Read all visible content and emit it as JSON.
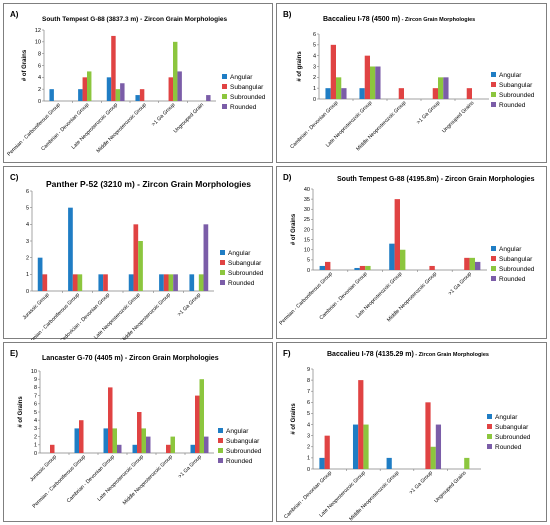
{
  "colors": {
    "Angular": "#1f7dc4",
    "Subangular": "#e04343",
    "Subrounded": "#8cc63e",
    "Rounded": "#7b5da8"
  },
  "chart_data": [
    {
      "panel": "A)",
      "title": "South Tempest G-88 (3837.3 m) - Zircon Grain Morphologies",
      "type": "bar",
      "ylabel": "# of Grains",
      "ylim": [
        0,
        12
      ],
      "yticks": [
        0,
        2,
        4,
        6,
        8,
        10,
        12
      ],
      "categories": [
        "Permian - Carboniferous Group",
        "Cambrian - Devonian Group",
        "Late Neoproterozoic Group",
        "Middle Neoproterozoic Group",
        ">1 Ga Group",
        "Ungrouped Grain"
      ],
      "series": [
        {
          "name": "Angular",
          "values": [
            2,
            2,
            4,
            1,
            0,
            0
          ]
        },
        {
          "name": "Subangular",
          "values": [
            0,
            4,
            11,
            2,
            4,
            0
          ]
        },
        {
          "name": "Subrounded",
          "values": [
            0,
            5,
            2,
            0,
            10,
            0
          ]
        },
        {
          "name": "Rounded",
          "values": [
            0,
            0,
            3,
            0,
            5,
            1
          ]
        }
      ]
    },
    {
      "panel": "B)",
      "title": "Baccalieu I-78 (4500 m)",
      "title_suffix": " - Zircon Grain Morphologies",
      "type": "bar",
      "ylabel": "# of grains",
      "ylim": [
        0,
        6
      ],
      "yticks": [
        0,
        1,
        2,
        3,
        4,
        5,
        6
      ],
      "categories": [
        "Cambrian - Devonian Group",
        "Late Neoproterozoic Group",
        "Middle Neoproterozoic Group",
        ">1 Ga Group",
        "Ungrouped Grains"
      ],
      "series": [
        {
          "name": "Angular",
          "values": [
            1,
            1,
            0,
            0,
            0
          ]
        },
        {
          "name": "Subangular",
          "values": [
            5,
            4,
            1,
            1,
            1
          ]
        },
        {
          "name": "Subrounded",
          "values": [
            2,
            3,
            0,
            2,
            0
          ]
        },
        {
          "name": "Rounded",
          "values": [
            1,
            3,
            0,
            2,
            0
          ]
        }
      ]
    },
    {
      "panel": "C)",
      "title": "Panther P-52 (3210 m) - Zircon Grain Morphologies",
      "type": "bar",
      "ylabel": "",
      "ylim": [
        0,
        6
      ],
      "yticks": [
        0,
        1,
        2,
        3,
        4,
        5,
        6
      ],
      "categories": [
        "Jurassic Group",
        "Permian - Carboniferous Group",
        "Ordovician - Devonian Group",
        "Late Neoproterozoic Group",
        "Middle Neoproterozoic Group",
        ">1 Ga Group"
      ],
      "series": [
        {
          "name": "Angular",
          "values": [
            2,
            5,
            1,
            1,
            1,
            1
          ]
        },
        {
          "name": "Subangular",
          "values": [
            1,
            1,
            1,
            4,
            1,
            0
          ]
        },
        {
          "name": "Subrounded",
          "values": [
            0,
            1,
            0,
            3,
            1,
            1
          ]
        },
        {
          "name": "Rounded",
          "values": [
            0,
            0,
            0,
            0,
            1,
            4
          ]
        }
      ]
    },
    {
      "panel": "D)",
      "title": "South Tempest G-88 (4195.8m) - Zircon Grain Morphologies",
      "type": "bar",
      "ylabel": "# of Grains",
      "ylim": [
        0,
        40
      ],
      "yticks": [
        0,
        5,
        10,
        15,
        20,
        25,
        30,
        35,
        40
      ],
      "categories": [
        "Permian - Carboniferous Group",
        "Cambrian - Devonian Group",
        "Late Neoproterozoic Group",
        "Middle Neoproterozoic Group",
        ">1 Ga Group"
      ],
      "series": [
        {
          "name": "Angular",
          "values": [
            2,
            1,
            13,
            0,
            0
          ]
        },
        {
          "name": "Subangular",
          "values": [
            4,
            2,
            35,
            2,
            6
          ]
        },
        {
          "name": "Subrounded",
          "values": [
            0,
            2,
            10,
            0,
            6
          ]
        },
        {
          "name": "Rounded",
          "values": [
            0,
            0,
            0,
            0,
            4
          ]
        }
      ]
    },
    {
      "panel": "E)",
      "title": "Lancaster G-70 (4405 m) - Zircon Grain Morphologies",
      "type": "bar",
      "ylabel": "# of Grains",
      "ylim": [
        0,
        10
      ],
      "yticks": [
        0,
        1,
        2,
        3,
        4,
        5,
        6,
        7,
        8,
        9,
        10
      ],
      "categories": [
        "Jurassic Group",
        "Permian - Carboniferous Group",
        "Cambrian - Devonian Group",
        "Late Neoproterozoic Group",
        "Middle Neoproterozoic Group",
        ">1 Ga Group"
      ],
      "series": [
        {
          "name": "Angular",
          "values": [
            0,
            3,
            3,
            1,
            0,
            1
          ]
        },
        {
          "name": "Subangular",
          "values": [
            1,
            4,
            8,
            5,
            1,
            7
          ]
        },
        {
          "name": "Subrounded",
          "values": [
            0,
            0,
            3,
            3,
            2,
            9
          ]
        },
        {
          "name": "Rounded",
          "values": [
            0,
            0,
            1,
            2,
            0,
            2
          ]
        }
      ]
    },
    {
      "panel": "F)",
      "title": "Baccalieu I-78 (4135.29 m)",
      "title_suffix": " - Zircon Grain Morphologies",
      "type": "bar",
      "ylabel": "# of Grains",
      "ylim": [
        0,
        9
      ],
      "yticks": [
        0,
        1,
        2,
        3,
        4,
        5,
        6,
        7,
        8,
        9
      ],
      "categories": [
        "Cambrian - Devonian Group",
        "Late Neoproterozoic Group",
        "Middle Neoproterozoic Group",
        ">1 Ga Group",
        "Ungrouped Grains"
      ],
      "series": [
        {
          "name": "Angular",
          "values": [
            1,
            4,
            1,
            0,
            0
          ]
        },
        {
          "name": "Subangular",
          "values": [
            3,
            8,
            0,
            6,
            0
          ]
        },
        {
          "name": "Subrounded",
          "values": [
            0,
            4,
            0,
            2,
            1
          ]
        },
        {
          "name": "Rounded",
          "values": [
            0,
            0,
            0,
            4,
            0
          ]
        }
      ]
    }
  ]
}
